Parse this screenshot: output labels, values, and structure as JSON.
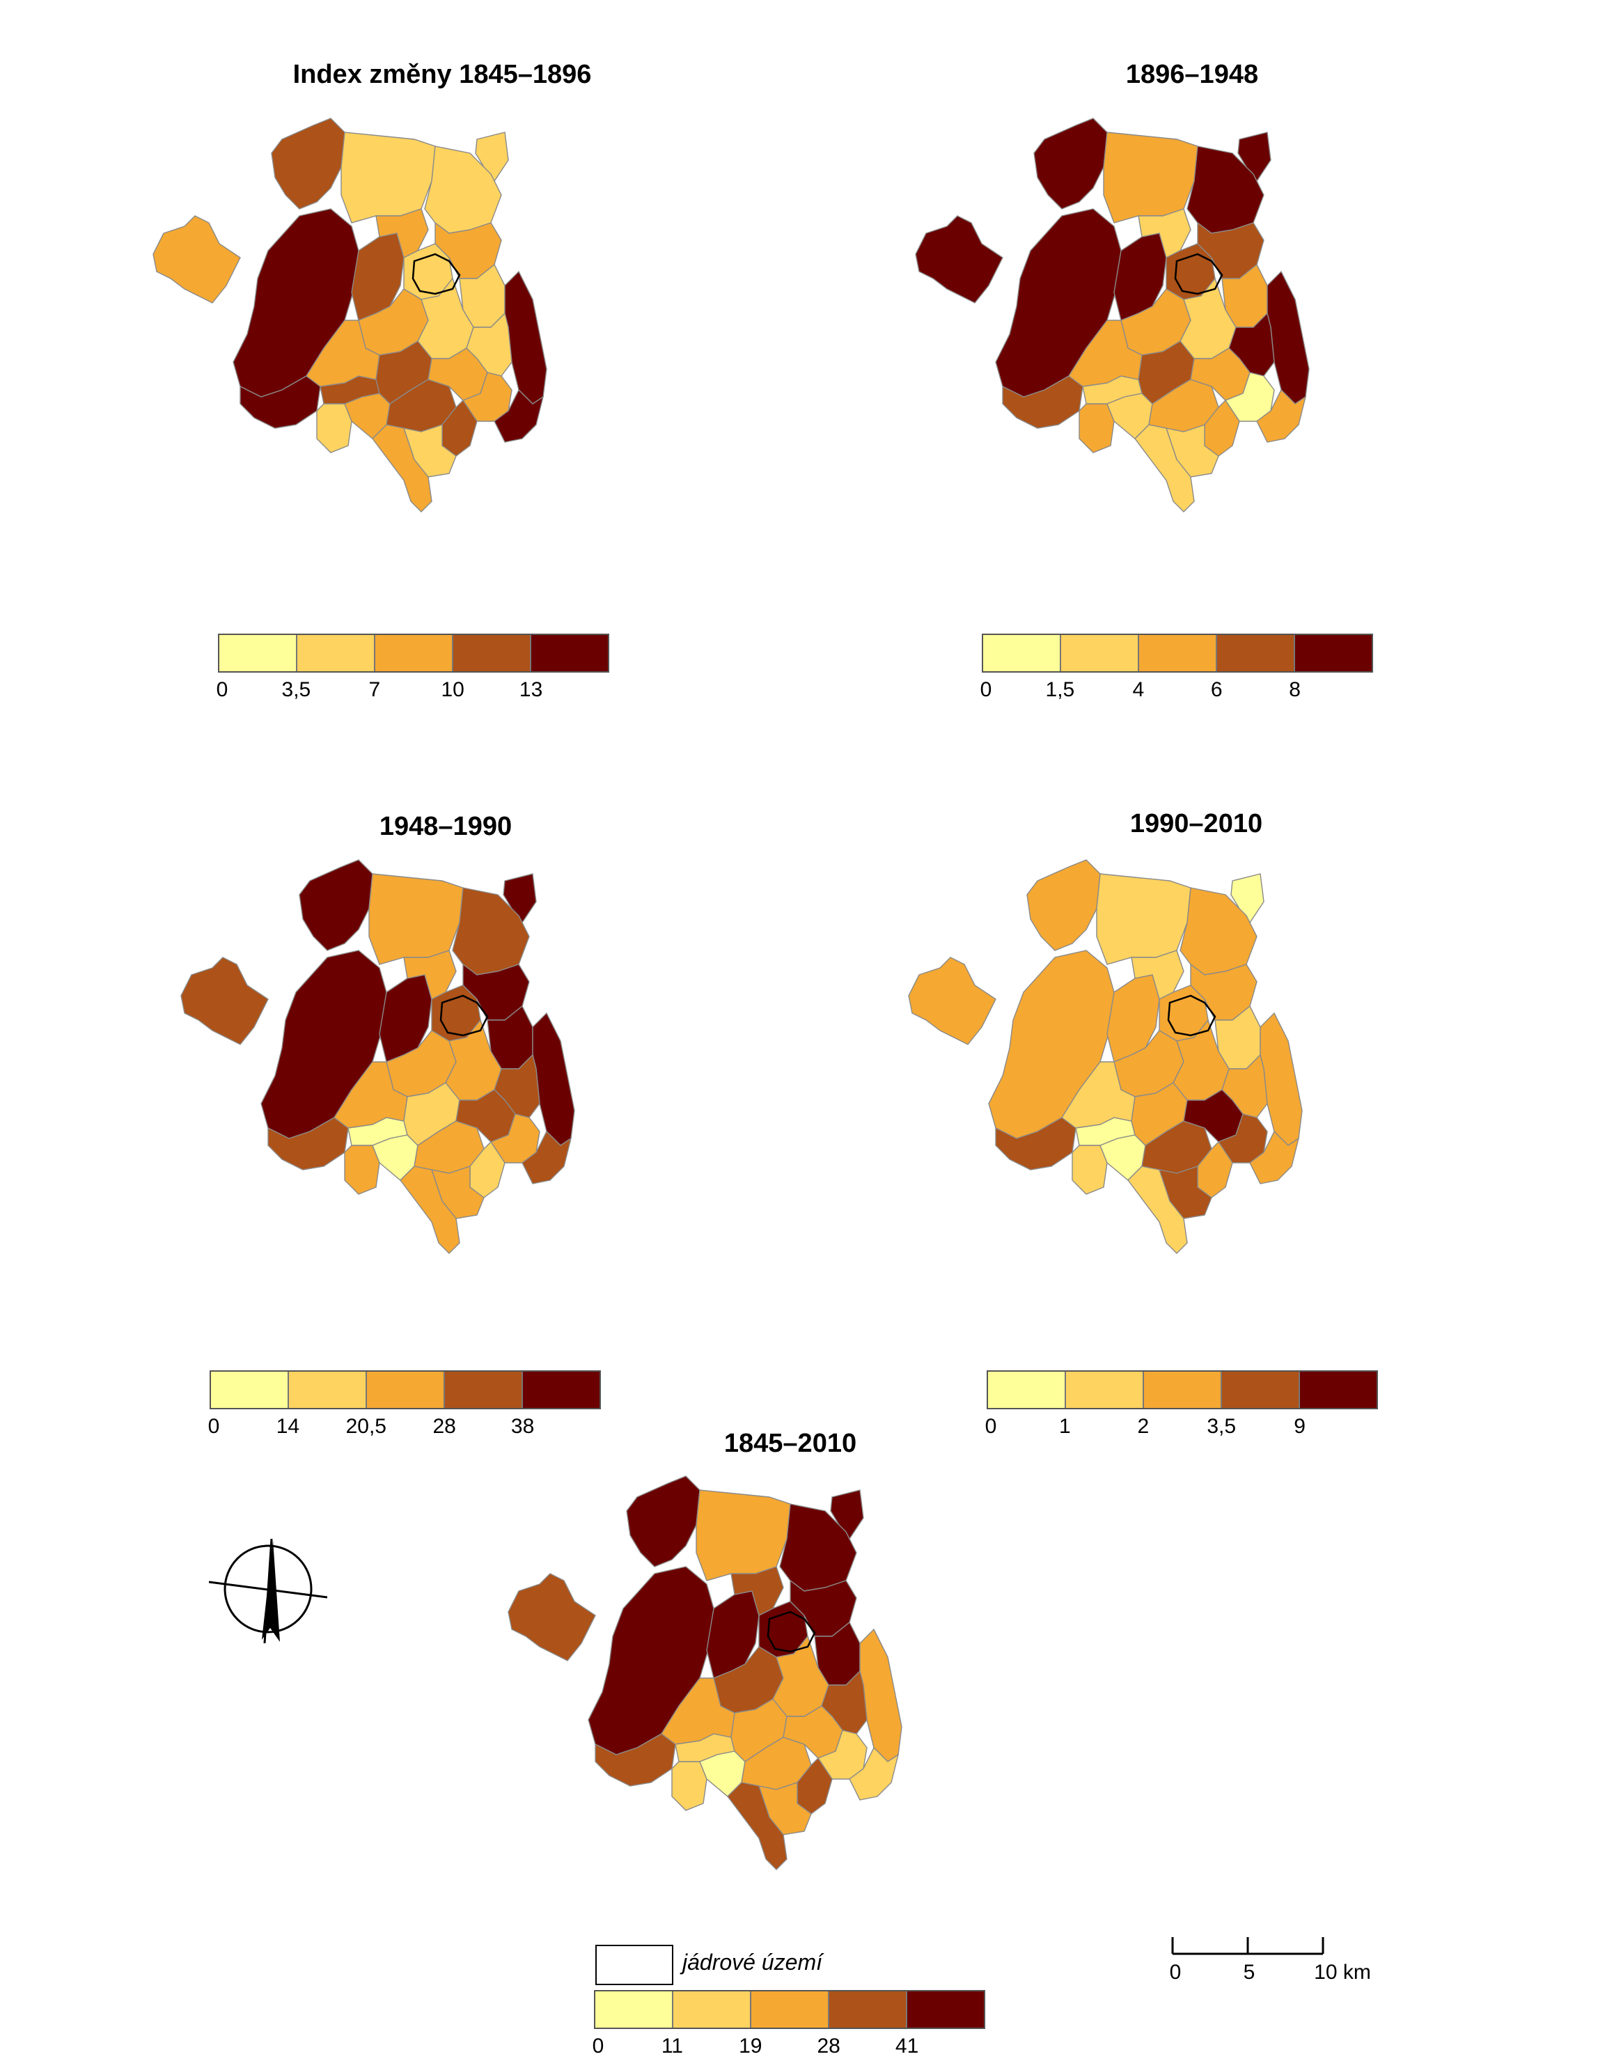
{
  "colors": [
    "#ffff99",
    "#fed35f",
    "#f5a832",
    "#ad5218",
    "#6b0000"
  ],
  "maps": [
    {
      "title": "Index změny 1845–1896",
      "legend_ticks": [
        "0",
        "3,5",
        "7",
        "10",
        "13"
      ],
      "core_outline": true
    },
    {
      "title": "1896–1948",
      "legend_ticks": [
        "0",
        "1,5",
        "4",
        "6",
        "8"
      ],
      "core_outline": true
    },
    {
      "title": "1948–1990",
      "legend_ticks": [
        "0",
        "14",
        "20,5",
        "28",
        "38"
      ],
      "core_outline": true
    },
    {
      "title": "1990–2010",
      "legend_ticks": [
        "0",
        "1",
        "2",
        "3,5",
        "9"
      ],
      "core_outline": true
    },
    {
      "title": "1845–2010",
      "legend_ticks": [
        "0",
        "11",
        "19",
        "28",
        "41"
      ],
      "core_outline": true
    }
  ],
  "core_legend_label": "jádrové území",
  "scale": {
    "ticks": [
      "0",
      "5",
      "10 km"
    ]
  },
  "compass_icon": "north-arrow-icon",
  "region_classes": [
    [
      2,
      3,
      4,
      1,
      1,
      1,
      3,
      2,
      1,
      2,
      1,
      4,
      4,
      3,
      2,
      1,
      1,
      2,
      1,
      2,
      3,
      3,
      2,
      2,
      3,
      1,
      4,
      2
    ],
    [
      4,
      4,
      4,
      2,
      4,
      4,
      4,
      1,
      3,
      3,
      2,
      4,
      3,
      1,
      2,
      1,
      4,
      2,
      2,
      1,
      3,
      2,
      2,
      0,
      2,
      1,
      2,
      1
    ],
    [
      3,
      4,
      4,
      2,
      4,
      3,
      4,
      2,
      3,
      4,
      4,
      4,
      3,
      0,
      2,
      2,
      3,
      2,
      2,
      0,
      1,
      2,
      3,
      2,
      1,
      2,
      3,
      2
    ],
    [
      2,
      2,
      2,
      1,
      0,
      2,
      2,
      1,
      2,
      2,
      1,
      2,
      3,
      0,
      2,
      2,
      2,
      1,
      1,
      0,
      2,
      3,
      4,
      3,
      2,
      3,
      2,
      1
    ],
    [
      3,
      4,
      4,
      2,
      4,
      4,
      4,
      3,
      4,
      4,
      4,
      2,
      3,
      1,
      3,
      2,
      3,
      2,
      1,
      0,
      2,
      2,
      2,
      1,
      3,
      2,
      1,
      3
    ]
  ]
}
